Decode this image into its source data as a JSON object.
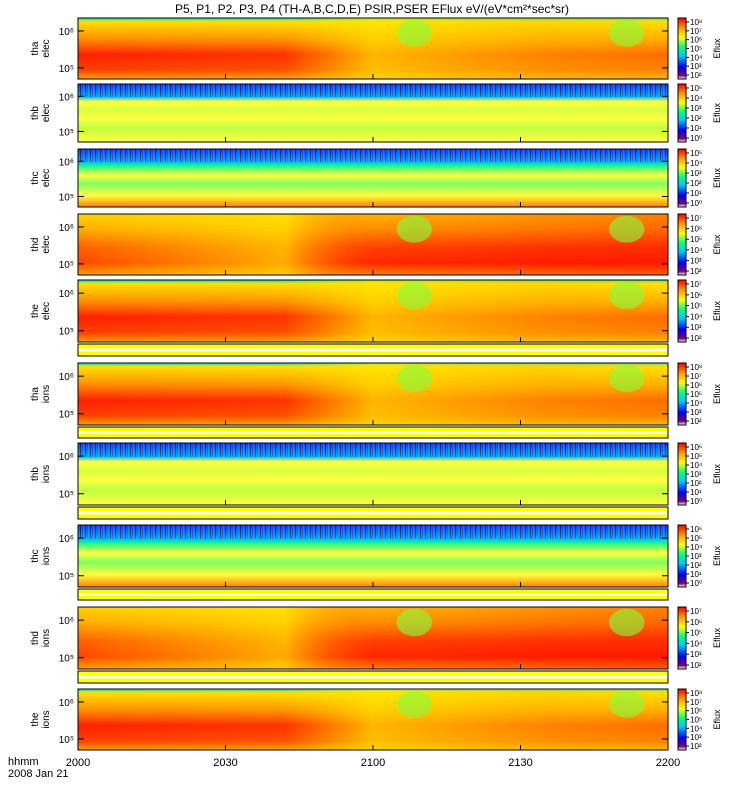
{
  "title": "P5, P1, P2, P3, P4 (TH-A,B,C,D,E) PSIR,PSER EFlux eV/(eV*cm²*sec*sr)",
  "time_axis": {
    "label": "hhmm",
    "date": "2008 Jan 21",
    "ticks": [
      "2000",
      "2030",
      "2100",
      "2130",
      "2200"
    ]
  },
  "colormap": [
    "#ffffff",
    "#7a007a",
    "#0000ff",
    "#00c8ff",
    "#00ff80",
    "#ffff00",
    "#ff9600",
    "#ff0000"
  ],
  "chart_data": {
    "type": "heatmap",
    "x_range": [
      "2000",
      "2200"
    ],
    "panels": [
      {
        "probe": "tha",
        "species": "elec",
        "yticks": [
          {
            "label": "10⁵",
            "exp": 5
          },
          {
            "label": "10⁶",
            "exp": 6
          }
        ],
        "zlabel": "Eflux",
        "zticks": [
          "10²",
          "10³",
          "10⁴",
          "10⁵",
          "10⁶",
          "10⁷",
          "10⁸"
        ],
        "zrange": [
          2,
          8
        ],
        "pattern": "warm"
      },
      {
        "probe": "thb",
        "species": "elec",
        "yticks": [
          {
            "label": "10⁵",
            "exp": 5
          },
          {
            "label": "10⁶",
            "exp": 6
          }
        ],
        "zlabel": "Eflux",
        "zticks": [
          "10⁰",
          "10¹",
          "10²",
          "10³",
          "10⁴",
          "10⁵"
        ],
        "zrange": [
          0,
          5
        ],
        "pattern": "noisy"
      },
      {
        "probe": "thc",
        "species": "elec",
        "yticks": [
          {
            "label": "10⁵",
            "exp": 5
          },
          {
            "label": "10⁶",
            "exp": 6
          }
        ],
        "zlabel": "Eflux",
        "zticks": [
          "10⁰",
          "10¹",
          "10²",
          "10³",
          "10⁴",
          "10⁵"
        ],
        "zrange": [
          0,
          5
        ],
        "pattern": "noisy-low"
      },
      {
        "probe": "thd",
        "species": "elec",
        "yticks": [
          {
            "label": "10⁵",
            "exp": 5
          },
          {
            "label": "10⁶",
            "exp": 6
          }
        ],
        "zlabel": "Eflux",
        "zticks": [
          "10²",
          "10³",
          "10⁴",
          "10⁵",
          "10⁶",
          "10⁷"
        ],
        "zrange": [
          2,
          7
        ],
        "pattern": "warm2"
      },
      {
        "probe": "the",
        "species": "elec",
        "yticks": [
          {
            "label": "10⁵",
            "exp": 5
          },
          {
            "label": "10⁶",
            "exp": 6
          }
        ],
        "zlabel": "Eflux",
        "zticks": [
          "10²",
          "10³",
          "10⁴",
          "10⁵",
          "10⁶",
          "10⁷"
        ],
        "zrange": [
          2,
          7
        ],
        "pattern": "warm"
      },
      {
        "probe": "tha",
        "species": "ions",
        "yticks": [
          {
            "label": "10⁵",
            "exp": 5
          },
          {
            "label": "10⁶",
            "exp": 6
          }
        ],
        "zlabel": "Eflux",
        "zticks": [
          "10²",
          "10³",
          "10⁴",
          "10⁵",
          "10⁶",
          "10⁷",
          "10⁸"
        ],
        "zrange": [
          2,
          8
        ],
        "pattern": "warm"
      },
      {
        "probe": "thb",
        "species": "ions",
        "yticks": [
          {
            "label": "10⁵",
            "exp": 5
          },
          {
            "label": "10⁶",
            "exp": 6
          }
        ],
        "zlabel": "Eflux",
        "zticks": [
          "10⁰",
          "10¹",
          "10²",
          "10³",
          "10⁴",
          "10⁵",
          "10⁶"
        ],
        "zrange": [
          0,
          6
        ],
        "pattern": "noisy"
      },
      {
        "probe": "thc",
        "species": "ions",
        "yticks": [
          {
            "label": "10⁵",
            "exp": 5
          },
          {
            "label": "10⁶",
            "exp": 6
          }
        ],
        "zlabel": "Eflux",
        "zticks": [
          "10⁰",
          "10¹",
          "10²",
          "10³",
          "10⁴",
          "10⁵",
          "10⁶"
        ],
        "zrange": [
          0,
          6
        ],
        "pattern": "noisy-low"
      },
      {
        "probe": "thd",
        "species": "ions",
        "yticks": [
          {
            "label": "10⁵",
            "exp": 5
          },
          {
            "label": "10⁶",
            "exp": 6
          }
        ],
        "zlabel": "Eflux",
        "zticks": [
          "10²",
          "10³",
          "10⁴",
          "10⁵",
          "10⁶",
          "10⁷"
        ],
        "zrange": [
          2,
          7
        ],
        "pattern": "warm2"
      },
      {
        "probe": "the",
        "species": "ions",
        "yticks": [
          {
            "label": "10⁵",
            "exp": 5
          },
          {
            "label": "10⁶",
            "exp": 6
          }
        ],
        "zlabel": "Eflux",
        "zticks": [
          "10²",
          "10³",
          "10⁴",
          "10⁵",
          "10⁶",
          "10⁷",
          "10⁸"
        ],
        "zrange": [
          2,
          8
        ],
        "pattern": "warm"
      }
    ]
  }
}
